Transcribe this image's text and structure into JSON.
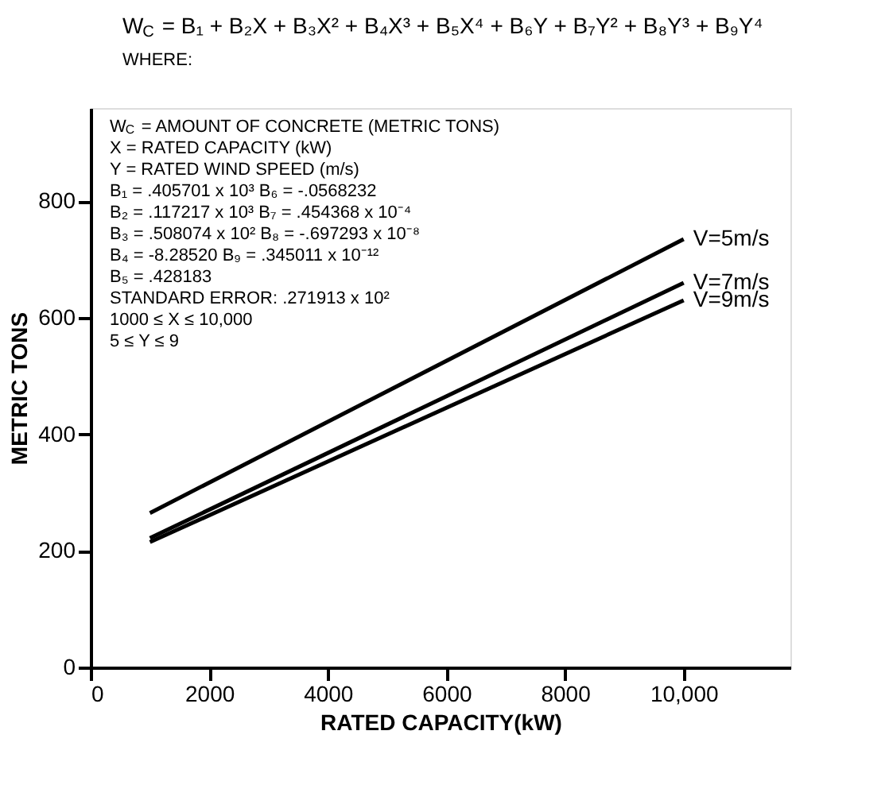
{
  "chart_data": {
    "type": "line",
    "title": "W$_{C}$ = B₁ + B₂X + B₃X² + B₄X³ + B₅X⁴ + B₆Y + B₇Y² + B₈Y³ + B₉Y⁴",
    "subtitle": "WHERE:",
    "xlabel": "RATED CAPACITY(kW)",
    "ylabel": "METRIC TONS",
    "x": [
      1000,
      10000
    ],
    "series": [
      {
        "name": "V=5m/s",
        "color": "#000000",
        "values": [
          265,
          735
        ]
      },
      {
        "name": "V=7m/s",
        "color": "#000000",
        "values": [
          222,
          660
        ]
      },
      {
        "name": "V=9m/s",
        "color": "#000000",
        "values": [
          215,
          630
        ]
      }
    ],
    "xlim": [
      0,
      11800
    ],
    "ylim": [
      0,
      960
    ],
    "xticks": [
      0,
      2000,
      4000,
      6000,
      8000,
      {
        "value": 10000,
        "label": "10,000"
      }
    ],
    "yticks": [
      0,
      200,
      400,
      600,
      800
    ],
    "grid": false,
    "legend": false,
    "marker": "none",
    "line_style": "solid",
    "annotations": [
      "W$_{C}$ = AMOUNT OF CONCRETE (METRIC TONS)",
      "X = RATED CAPACITY (kW)",
      "Y = RATED WIND SPEED (m/s)",
      "B₁ = .405701 x 10³     B₆ = -.0568232",
      "B₂ = .117217 x 10³     B₇ = .454368 x 10⁻⁴",
      "B₃ = .508074 x 10²     B₈ = -.697293 x 10⁻⁸",
      "B₄ = -8.28520           B₉ = .345011 x 10⁻¹²",
      "B₅ = .428183",
      "STANDARD ERROR: .271913 x 10²",
      "1000 ≤ X ≤ 10,000",
      "5 ≤ Y ≤ 9"
    ]
  }
}
